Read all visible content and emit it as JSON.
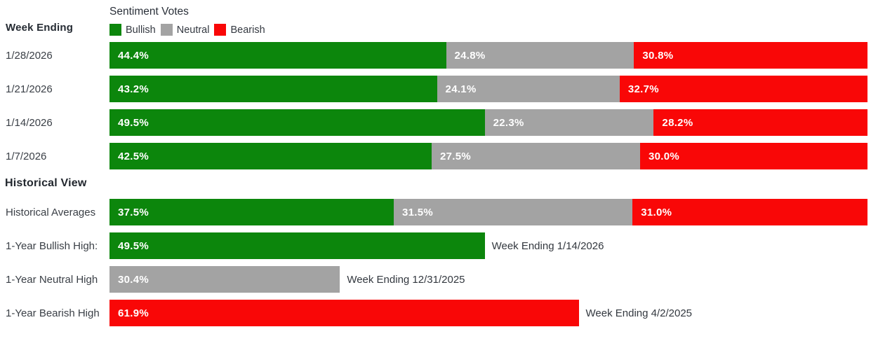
{
  "header": {
    "week_ending_label": "Week Ending",
    "title": "Sentiment Votes",
    "legend": [
      {
        "label": "Bullish",
        "color": "#0C860C"
      },
      {
        "label": "Neutral",
        "color": "#A3A3A3"
      },
      {
        "label": "Bearish",
        "color": "#F90707"
      }
    ]
  },
  "weekly": {
    "rows": [
      {
        "date": "1/28/2026",
        "bullish": 44.4,
        "neutral": 24.8,
        "bearish": 30.8,
        "bullish_label": "44.4%",
        "neutral_label": "24.8%",
        "bearish_label": "30.8%"
      },
      {
        "date": "1/21/2026",
        "bullish": 43.2,
        "neutral": 24.1,
        "bearish": 32.7,
        "bullish_label": "43.2%",
        "neutral_label": "24.1%",
        "bearish_label": "32.7%"
      },
      {
        "date": "1/14/2026",
        "bullish": 49.5,
        "neutral": 22.3,
        "bearish": 28.2,
        "bullish_label": "49.5%",
        "neutral_label": "22.3%",
        "bearish_label": "28.2%"
      },
      {
        "date": "1/7/2026",
        "bullish": 42.5,
        "neutral": 27.5,
        "bearish": 30.0,
        "bullish_label": "42.5%",
        "neutral_label": "27.5%",
        "bearish_label": "30.0%"
      }
    ]
  },
  "historical": {
    "heading": "Historical View",
    "averages": {
      "label": "Historical Averages",
      "bullish": 37.5,
      "neutral": 31.5,
      "bearish": 31.0,
      "bullish_label": "37.5%",
      "neutral_label": "31.5%",
      "bearish_label": "31.0%"
    },
    "highs": [
      {
        "label": "1-Year Bullish High:",
        "value": 49.5,
        "value_label": "49.5%",
        "annotation": "Week Ending 1/14/2026",
        "color": "#0C860C"
      },
      {
        "label": "1-Year Neutral High",
        "value": 30.4,
        "value_label": "30.4%",
        "annotation": "Week Ending 12/31/2025",
        "color": "#A3A3A3"
      },
      {
        "label": "1-Year Bearish High",
        "value": 61.9,
        "value_label": "61.9%",
        "annotation": "Week Ending 4/2/2025",
        "color": "#F90707"
      }
    ]
  },
  "chart_data": [
    {
      "type": "bar",
      "orientation": "horizontal",
      "stacked": true,
      "title": "Sentiment Votes",
      "categories": [
        "1/28/2026",
        "1/21/2026",
        "1/14/2026",
        "1/7/2026"
      ],
      "series": [
        {
          "name": "Bullish",
          "color": "#0C860C",
          "values": [
            44.4,
            43.2,
            49.5,
            42.5
          ]
        },
        {
          "name": "Neutral",
          "color": "#A3A3A3",
          "values": [
            24.8,
            24.1,
            22.3,
            27.5
          ]
        },
        {
          "name": "Bearish",
          "color": "#F90707",
          "values": [
            30.8,
            32.7,
            28.2,
            30.0
          ]
        }
      ],
      "xlim": [
        0,
        100
      ],
      "value_format": "percent",
      "legend_position": "top",
      "grid": false,
      "ylabel": "Week Ending",
      "xlabel": ""
    },
    {
      "type": "bar",
      "orientation": "horizontal",
      "stacked": true,
      "title": "Historical View",
      "categories": [
        "Historical Averages",
        "1-Year Bullish High:",
        "1-Year Neutral High",
        "1-Year Bearish High"
      ],
      "series": [
        {
          "name": "Bullish",
          "color": "#0C860C",
          "values": [
            37.5,
            49.5,
            0,
            0
          ]
        },
        {
          "name": "Neutral",
          "color": "#A3A3A3",
          "values": [
            31.5,
            0,
            30.4,
            0
          ]
        },
        {
          "name": "Bearish",
          "color": "#F90707",
          "values": [
            31.0,
            0,
            0,
            61.9
          ]
        }
      ],
      "annotations": [
        "",
        "Week Ending 1/14/2026",
        "Week Ending 12/31/2025",
        "Week Ending 4/2/2025"
      ],
      "xlim": [
        0,
        100
      ],
      "value_format": "percent",
      "grid": false,
      "xlabel": "",
      "ylabel": ""
    }
  ]
}
